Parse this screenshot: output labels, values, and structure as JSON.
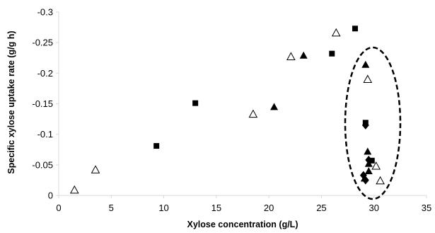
{
  "chart_data": {
    "type": "scatter",
    "title": "",
    "xlabel": "Xylose concentration (g/L)",
    "ylabel": "Specific xylose uptake rate (g/g h)",
    "xlim": [
      0,
      35
    ],
    "ylim": [
      0,
      -0.3
    ],
    "x_ticks": [
      "0",
      "5",
      "10",
      "15",
      "20",
      "25",
      "30",
      "35"
    ],
    "y_ticks": [
      "0",
      "-0.05",
      "-0.1",
      "-0.15",
      "-0.2",
      "-0.25",
      "-0.3"
    ],
    "grid": false,
    "legend": "none",
    "series": [
      {
        "marker": "filled-square",
        "points": [
          {
            "x": 9.3,
            "y": -0.081
          },
          {
            "x": 13.0,
            "y": -0.151
          },
          {
            "x": 26.0,
            "y": -0.232
          },
          {
            "x": 28.2,
            "y": -0.273
          },
          {
            "x": 29.2,
            "y": -0.119
          },
          {
            "x": 29.8,
            "y": -0.057
          }
        ]
      },
      {
        "marker": "filled-triangle",
        "points": [
          {
            "x": 20.5,
            "y": -0.145
          },
          {
            "x": 23.3,
            "y": -0.229
          },
          {
            "x": 29.2,
            "y": -0.214
          },
          {
            "x": 29.4,
            "y": -0.072
          },
          {
            "x": 29.5,
            "y": -0.052
          },
          {
            "x": 29.5,
            "y": -0.04
          },
          {
            "x": 29.1,
            "y": -0.028
          }
        ]
      },
      {
        "marker": "open-triangle",
        "points": [
          {
            "x": 1.5,
            "y": -0.009
          },
          {
            "x": 3.5,
            "y": -0.042
          },
          {
            "x": 18.5,
            "y": -0.133
          },
          {
            "x": 22.1,
            "y": -0.227
          },
          {
            "x": 26.4,
            "y": -0.266
          },
          {
            "x": 29.4,
            "y": -0.19
          },
          {
            "x": 30.2,
            "y": -0.048
          },
          {
            "x": 30.6,
            "y": -0.024
          }
        ]
      },
      {
        "marker": "filled-diamond",
        "points": [
          {
            "x": 29.2,
            "y": -0.115
          },
          {
            "x": 29.5,
            "y": -0.058
          },
          {
            "x": 29.0,
            "y": -0.033
          },
          {
            "x": 29.2,
            "y": -0.025
          }
        ]
      }
    ],
    "annotation": "dashed ellipse around points at x≈29-30 g/L",
    "colors": {
      "markers": "#000000",
      "axes": "#d9d9d9",
      "background": "#ffffff"
    }
  }
}
